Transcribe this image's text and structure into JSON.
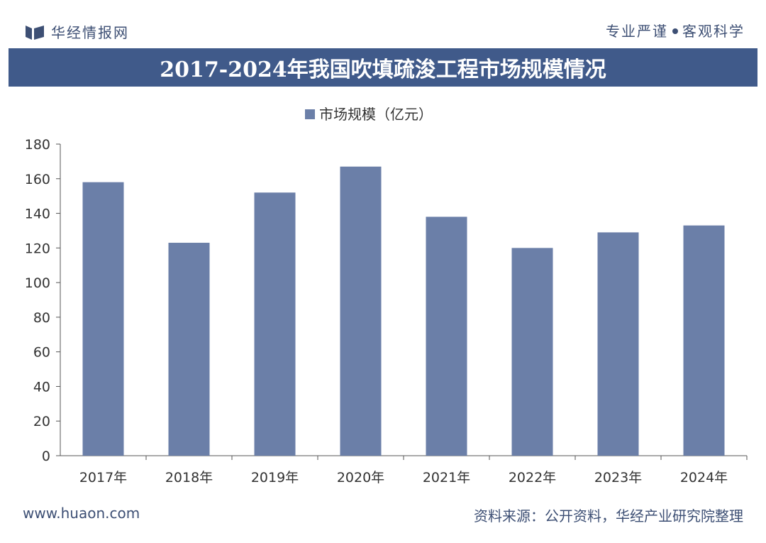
{
  "header": {
    "brand": "华经情报网",
    "slogan_left": "专业严谨",
    "slogan_right": "客观科学"
  },
  "title": "2017-2024年我国吹填疏浚工程市场规模情况",
  "footer": {
    "website": "www.huaon.com",
    "source": "资料来源：公开资料，华经产业研究院整理"
  },
  "colors": {
    "bar": "#6b7fa8",
    "band": "#405a8a",
    "text": "#333333"
  },
  "chart_data": {
    "type": "bar",
    "categories": [
      "2017年",
      "2018年",
      "2019年",
      "2020年",
      "2021年",
      "2022年",
      "2023年",
      "2024年"
    ],
    "series": [
      {
        "name": "市场规模（亿元）",
        "values": [
          158,
          123,
          152,
          167,
          138,
          120,
          129,
          133
        ]
      }
    ],
    "ylim": [
      0,
      180
    ],
    "yticks": [
      0,
      20,
      40,
      60,
      80,
      100,
      120,
      140,
      160,
      180
    ],
    "legend_position": "top-center",
    "grid": false
  }
}
